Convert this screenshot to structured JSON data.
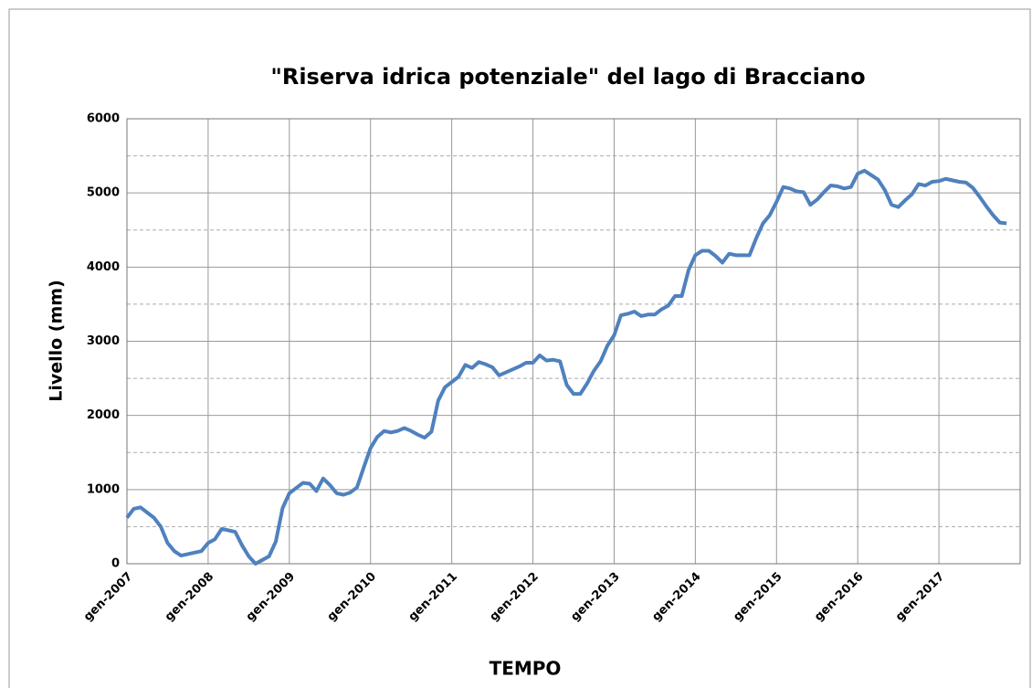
{
  "chart_data": {
    "type": "line",
    "title": "\"Riserva idrica potenziale\" del lago di Bracciano",
    "x_label": "TEMPO",
    "y_label": "Livello (mm)",
    "categories": [
      "gen-2007",
      null,
      null,
      null,
      null,
      null,
      null,
      null,
      null,
      null,
      null,
      null,
      "gen-2008",
      null,
      null,
      null,
      null,
      null,
      null,
      null,
      null,
      null,
      null,
      null,
      "gen-2009",
      null,
      null,
      null,
      null,
      null,
      null,
      null,
      null,
      null,
      null,
      null,
      "gen-2010",
      null,
      null,
      null,
      null,
      null,
      null,
      null,
      null,
      null,
      null,
      null,
      "gen-2011",
      null,
      null,
      null,
      null,
      null,
      null,
      null,
      null,
      null,
      null,
      null,
      "gen-2012",
      null,
      null,
      null,
      null,
      null,
      null,
      null,
      null,
      null,
      null,
      null,
      "gen-2013",
      null,
      null,
      null,
      null,
      null,
      null,
      null,
      null,
      null,
      null,
      null,
      "gen-2014",
      null,
      null,
      null,
      null,
      null,
      null,
      null,
      null,
      null,
      null,
      null,
      "gen-2015",
      null,
      null,
      null,
      null,
      null,
      null,
      null,
      null,
      null,
      null,
      null,
      "gen-2016",
      null,
      null,
      null,
      null,
      null,
      null,
      null,
      null,
      null,
      null,
      null,
      "gen-2017",
      null,
      null,
      null,
      null,
      null,
      null,
      null,
      null,
      null,
      null,
      null
    ],
    "series": [
      {
        "color": "#4f81bd",
        "values": [
          620,
          740,
          760,
          690,
          620,
          500,
          280,
          170,
          110,
          130,
          150,
          170,
          280,
          330,
          470,
          450,
          430,
          250,
          100,
          0,
          50,
          100,
          300,
          750,
          950,
          1020,
          1090,
          1080,
          980,
          1150,
          1060,
          950,
          930,
          960,
          1030,
          1300,
          1560,
          1710,
          1790,
          1770,
          1790,
          1830,
          1790,
          1740,
          1700,
          1780,
          2200,
          2380,
          2450,
          2520,
          2680,
          2640,
          2720,
          2690,
          2650,
          2540,
          2580,
          2620,
          2660,
          2710,
          2710,
          2810,
          2740,
          2750,
          2730,
          2410,
          2290,
          2290,
          2430,
          2600,
          2730,
          2940,
          3080,
          3350,
          3370,
          3400,
          3340,
          3360,
          3360,
          3430,
          3480,
          3610,
          3610,
          3960,
          4160,
          4220,
          4220,
          4150,
          4060,
          4180,
          4160,
          4160,
          4160,
          4390,
          4590,
          4700,
          4880,
          5080,
          5060,
          5020,
          5010,
          4840,
          4910,
          5010,
          5100,
          5090,
          5060,
          5080,
          5260,
          5300,
          5240,
          5180,
          5040,
          4840,
          4810,
          4900,
          4980,
          5120,
          5100,
          5150,
          5160,
          5190,
          5170,
          5150,
          5140,
          5070,
          4950,
          4820,
          4700,
          4600,
          4590,
          null
        ]
      }
    ],
    "ylim": [
      0,
      6000
    ],
    "yticks": [
      0,
      1000,
      2000,
      3000,
      4000,
      5000,
      6000
    ],
    "y_minor_ticks": [
      500,
      1500,
      2500,
      3500,
      4500,
      5500
    ],
    "grid": true
  }
}
